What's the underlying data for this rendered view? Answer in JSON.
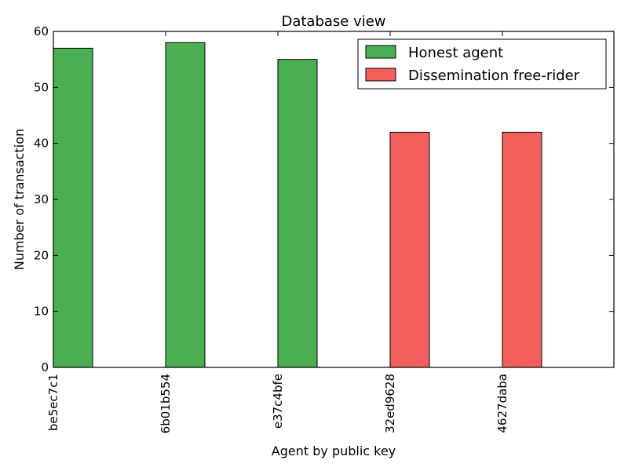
{
  "chart_data": {
    "type": "bar",
    "title": "Database view",
    "xlabel": "Agent by public key",
    "ylabel": "Number of transaction",
    "categories": [
      "be5ec7c1",
      "6b01b554",
      "e37c4bfe",
      "32ed9628",
      "4627daba"
    ],
    "values": [
      57,
      58,
      55,
      42,
      42
    ],
    "groups": [
      "Honest agent",
      "Honest agent",
      "Honest agent",
      "Dissemination free-rider",
      "Dissemination free-rider"
    ],
    "ylim": [
      0,
      60
    ],
    "yticks": [
      0,
      10,
      20,
      30,
      40,
      50,
      60
    ],
    "grid": false,
    "legend": {
      "position": "top-right",
      "entries": [
        {
          "label": "Honest agent",
          "color": "#4aaf50"
        },
        {
          "label": "Dissemination free-rider",
          "color": "#f25f5c"
        }
      ]
    }
  }
}
